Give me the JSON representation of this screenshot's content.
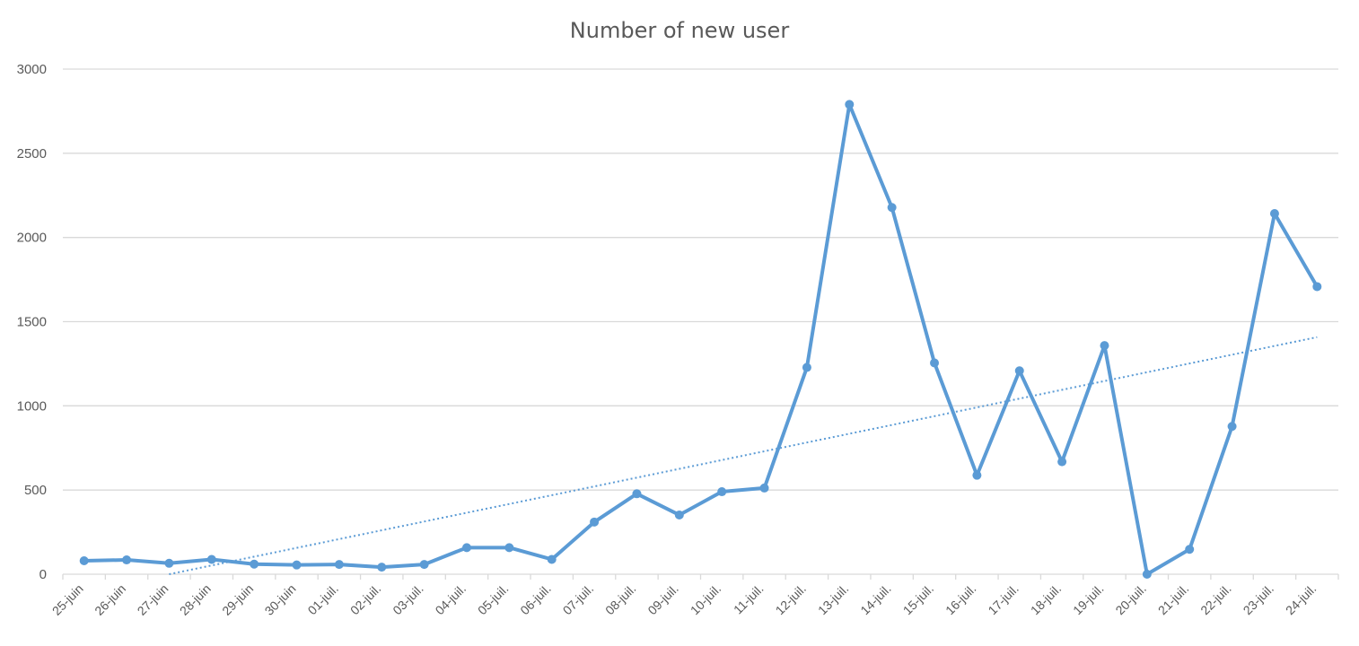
{
  "chart_data": {
    "type": "line",
    "title": "Number of new user",
    "xlabel": "",
    "ylabel": "",
    "ylim": [
      0,
      3000
    ],
    "yticks": [
      0,
      500,
      1000,
      1500,
      2000,
      2500,
      3000
    ],
    "grid": "horizontal",
    "legend": "none",
    "categories": [
      "25-juin",
      "26-juin",
      "27-juin",
      "28-juin",
      "29-juin",
      "30-juin",
      "01-juil.",
      "02-juil.",
      "03-juil.",
      "04-juil.",
      "05-juil.",
      "06-juil.",
      "07-juil.",
      "08-juil.",
      "09-juil.",
      "10-juil.",
      "11-juil.",
      "12-juil.",
      "13-juil.",
      "14-juil.",
      "15-juil.",
      "16-juil.",
      "17-juil.",
      "18-juil.",
      "19-juil.",
      "20-juil.",
      "21-juil.",
      "22-juil.",
      "23-juil.",
      "24-juil."
    ],
    "series": [
      {
        "values": [
          80,
          85,
          65,
          88,
          60,
          55,
          58,
          42,
          58,
          158,
          158,
          88,
          310,
          478,
          352,
          490,
          512,
          1228,
          2790,
          2178,
          1255,
          588,
          1208,
          668,
          1358,
          0,
          148,
          878,
          2142,
          1708
        ],
        "color": "#5b9bd5"
      }
    ],
    "trendline": {
      "type": "linear",
      "style": "dotted",
      "color": "#5b9bd5",
      "start": [
        2,
        0
      ],
      "end": [
        29,
        1408
      ]
    }
  }
}
